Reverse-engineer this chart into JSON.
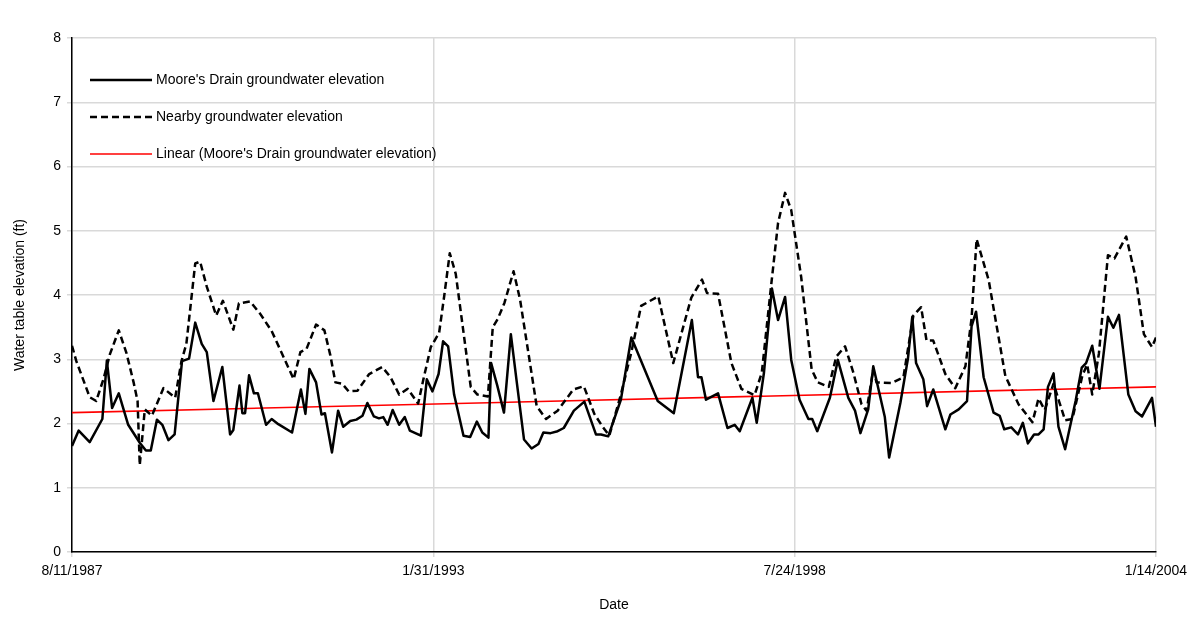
{
  "chart_data": {
    "type": "line",
    "xlabel": "Date",
    "ylabel": "Water table elevation (ft)",
    "xlim": [
      "1987-08-11",
      "2004-01-14"
    ],
    "xticks": [
      {
        "value": "1987-08-11",
        "label": "8/11/1987"
      },
      {
        "value": "1993-01-31",
        "label": "1/31/1993"
      },
      {
        "value": "1998-07-24",
        "label": "7/24/1998"
      },
      {
        "value": "2004-01-14",
        "label": "1/14/2004"
      }
    ],
    "ylim": [
      0,
      8
    ],
    "yticks": [
      0,
      1,
      2,
      3,
      4,
      5,
      6,
      7,
      8
    ],
    "grid": true,
    "legend": "top left",
    "series": [
      {
        "name": "Moore's Drain groundwater elevation",
        "color": "#000000",
        "line_style": "solid",
        "x": [
          "1987-08-11",
          "1987-09-17",
          "1987-11-17",
          "1988-01-26",
          "1988-02-20",
          "1988-03-20",
          "1988-04-26",
          "1988-06-17",
          "1988-08-20",
          "1988-09-23",
          "1988-10-20",
          "1988-11-23",
          "1988-12-23",
          "1989-01-26",
          "1989-03-01",
          "1989-04-11",
          "1989-05-20",
          "1989-06-23",
          "1989-07-29",
          "1989-08-26",
          "1989-10-02",
          "1989-11-20",
          "1990-01-02",
          "1990-01-20",
          "1990-02-23",
          "1990-03-11",
          "1990-03-26",
          "1990-04-17",
          "1990-05-14",
          "1990-06-05",
          "1990-07-20",
          "1990-08-20",
          "1990-09-26",
          "1990-12-11",
          "1991-01-29",
          "1991-02-23",
          "1991-03-17",
          "1991-04-23",
          "1991-05-23",
          "1991-06-11",
          "1991-07-20",
          "1991-08-23",
          "1991-09-20",
          "1991-10-29",
          "1991-12-02",
          "1992-01-05",
          "1992-02-01",
          "1992-03-08",
          "1992-04-05",
          "1992-04-29",
          "1992-05-23",
          "1992-06-20",
          "1992-07-26",
          "1992-08-26",
          "1992-09-23",
          "1992-11-23",
          "1992-12-26",
          "1993-01-26",
          "1993-03-01",
          "1993-03-26",
          "1993-04-23",
          "1993-05-26",
          "1993-07-17",
          "1993-08-23",
          "1993-09-29",
          "1993-10-29",
          "1993-12-02",
          "1993-12-17",
          "1994-01-20",
          "1994-02-26",
          "1994-04-05",
          "1994-05-08",
          "1994-06-17",
          "1994-07-29",
          "1994-09-05",
          "1994-10-02",
          "1994-11-11",
          "1994-12-20",
          "1995-01-23",
          "1995-03-20",
          "1995-05-17",
          "1995-07-20",
          "1995-08-17",
          "1995-09-26",
          "1995-12-05",
          "1996-02-01",
          "1996-06-26",
          "1996-09-23",
          "1997-01-01",
          "1997-02-04",
          "1997-02-23",
          "1997-03-20",
          "1997-05-26",
          "1997-07-17",
          "1997-08-26",
          "1997-09-23",
          "1997-12-02",
          "1997-12-26",
          "1998-02-04",
          "1998-03-20",
          "1998-04-23",
          "1998-06-01",
          "1998-07-05",
          "1998-08-20",
          "1998-10-08",
          "1998-10-29",
          "1998-11-26",
          "1999-02-04",
          "1999-03-20",
          "1999-05-17",
          "1999-06-23",
          "1999-07-23",
          "1999-09-04",
          "1999-10-02",
          "1999-12-05",
          "1999-12-29",
          "2000-02-29",
          "2000-04-11",
          "2000-05-05",
          "2000-05-26",
          "2000-07-05",
          "2000-07-26",
          "2000-08-29",
          "2000-11-04",
          "2000-12-02",
          "2001-01-17",
          "2001-03-04",
          "2001-03-29",
          "2001-04-23",
          "2001-06-04",
          "2001-07-29",
          "2001-09-01",
          "2001-09-26",
          "2001-11-04",
          "2001-12-11",
          "2002-01-07",
          "2002-02-04",
          "2002-03-10",
          "2002-04-04",
          "2002-05-02",
          "2002-05-26",
          "2002-06-26",
          "2002-07-23",
          "2002-08-29",
          "2002-10-26",
          "2002-11-29",
          "2002-12-23",
          "2003-01-26",
          "2003-03-07",
          "2003-04-23",
          "2003-05-23",
          "2003-06-23",
          "2003-08-14",
          "2003-09-23",
          "2003-10-29",
          "2003-12-23",
          "2004-01-14"
        ],
        "values": [
          1.65,
          1.89,
          1.71,
          2.07,
          2.98,
          2.24,
          2.47,
          1.98,
          1.7,
          1.58,
          1.58,
          2.06,
          1.98,
          1.74,
          1.83,
          2.97,
          3.01,
          3.57,
          3.24,
          3.11,
          2.35,
          2.88,
          1.83,
          1.9,
          2.59,
          2.16,
          2.16,
          2.75,
          2.47,
          2.47,
          1.98,
          2.07,
          1.99,
          1.86,
          2.53,
          2.15,
          2.85,
          2.64,
          2.14,
          2.16,
          1.55,
          2.2,
          1.95,
          2.04,
          2.06,
          2.12,
          2.32,
          2.11,
          2.08,
          2.1,
          1.98,
          2.21,
          1.98,
          2.1,
          1.89,
          1.81,
          2.69,
          2.5,
          2.77,
          3.28,
          3.2,
          2.45,
          1.81,
          1.79,
          2.03,
          1.86,
          1.78,
          2.94,
          2.59,
          2.17,
          3.39,
          2.64,
          1.75,
          1.61,
          1.68,
          1.86,
          1.85,
          1.88,
          1.93,
          2.2,
          2.34,
          1.83,
          1.83,
          1.8,
          2.37,
          3.34,
          2.35,
          2.16,
          3.61,
          2.72,
          2.72,
          2.37,
          2.47,
          1.93,
          1.98,
          1.88,
          2.4,
          2.01,
          2.79,
          4.1,
          3.61,
          3.97,
          2.99,
          2.37,
          2.07,
          2.07,
          1.88,
          2.4,
          2.99,
          2.4,
          2.2,
          1.85,
          2.22,
          2.89,
          2.1,
          1.47,
          2.32,
          3.01,
          3.66,
          2.94,
          2.69,
          2.27,
          2.53,
          1.91,
          2.14,
          2.22,
          2.35,
          3.51,
          3.74,
          2.72,
          2.17,
          2.12,
          1.91,
          1.94,
          1.83,
          2.01,
          1.69,
          1.83,
          1.83,
          1.91,
          2.57,
          2.78,
          1.95,
          1.6,
          2.35,
          2.87,
          2.94,
          3.21,
          2.54,
          3.66,
          3.49,
          3.69,
          2.45,
          2.19,
          2.11,
          2.4,
          1.95
        ]
      },
      {
        "name": "Nearby groundwater elevation",
        "color": "#000000",
        "line_style": "dashed",
        "x": [
          "1987-08-11",
          "1987-09-04",
          "1987-11-17",
          "1987-12-23",
          "1988-02-01",
          "1988-03-08",
          "1988-04-26",
          "1988-06-08",
          "1988-07-17",
          "1988-08-08",
          "1988-08-20",
          "1988-09-17",
          "1988-10-26",
          "1988-12-29",
          "1989-03-04",
          "1989-04-08",
          "1989-05-05",
          "1989-06-23",
          "1989-07-20",
          "1989-08-26",
          "1989-10-17",
          "1989-11-23",
          "1990-01-20",
          "1990-02-20",
          "1990-04-23",
          "1990-06-17",
          "1990-08-20",
          "1990-12-20",
          "1991-01-26",
          "1991-03-01",
          "1991-04-23",
          "1991-06-08",
          "1991-07-11",
          "1991-08-08",
          "1991-09-14",
          "1991-10-20",
          "1991-12-08",
          "1992-02-11",
          "1992-04-23",
          "1992-06-08",
          "1992-07-26",
          "1992-09-11",
          "1992-11-08",
          "1992-12-08",
          "1993-01-17",
          "1993-03-04",
          "1993-04-01",
          "1993-05-02",
          "1993-06-04",
          "1993-08-26",
          "1993-10-02",
          "1993-11-29",
          "1993-12-26",
          "1994-01-23",
          "1994-03-01",
          "1994-04-20",
          "1994-05-26",
          "1994-08-26",
          "1994-10-17",
          "1994-12-20",
          "1995-03-17",
          "1995-05-14",
          "1995-07-11",
          "1995-08-26",
          "1995-10-02",
          "1995-12-05",
          "1996-02-01",
          "1996-03-26",
          "1996-06-29",
          "1996-09-20",
          "1996-12-29",
          "1997-02-26",
          "1997-03-26",
          "1997-05-26",
          "1997-08-08",
          "1997-10-02",
          "1997-12-14",
          "1998-01-23",
          "1998-03-17",
          "1998-04-23",
          "1998-06-01",
          "1998-07-05",
          "1998-08-29",
          "1998-10-26",
          "1998-11-29",
          "1999-01-29",
          "1999-03-11",
          "1999-04-29",
          "1999-06-14",
          "1999-07-29",
          "1999-08-26",
          "1999-10-02",
          "1999-10-20",
          "2000-01-11",
          "2000-03-17",
          "2000-05-11",
          "2000-06-23",
          "2000-07-23",
          "2000-08-29",
          "2000-11-04",
          "2000-12-29",
          "2001-02-23",
          "2001-03-29",
          "2001-04-26",
          "2001-07-02",
          "2001-10-02",
          "2001-12-14",
          "2002-03-01",
          "2002-04-04",
          "2002-05-08",
          "2002-06-26",
          "2002-07-26",
          "2002-08-29",
          "2002-10-08",
          "2002-12-02",
          "2002-12-29",
          "2003-01-26",
          "2003-03-04",
          "2003-04-23",
          "2003-05-29",
          "2003-08-02",
          "2003-09-23",
          "2003-11-08",
          "2003-12-23",
          "2004-01-14"
        ],
        "values": [
          3.21,
          2.97,
          2.41,
          2.35,
          2.69,
          3.08,
          3.45,
          3.09,
          2.64,
          2.35,
          1.35,
          2.22,
          2.12,
          2.55,
          2.4,
          2.97,
          3.24,
          4.49,
          4.52,
          4.13,
          3.68,
          3.91,
          3.46,
          3.87,
          3.9,
          3.71,
          3.44,
          2.69,
          3.11,
          3.16,
          3.54,
          3.45,
          3.06,
          2.64,
          2.62,
          2.5,
          2.51,
          2.77,
          2.88,
          2.72,
          2.45,
          2.54,
          2.31,
          2.7,
          3.19,
          3.41,
          3.98,
          4.65,
          4.33,
          2.57,
          2.45,
          2.42,
          3.5,
          3.63,
          3.88,
          4.37,
          3.93,
          2.27,
          2.07,
          2.2,
          2.53,
          2.58,
          2.15,
          1.95,
          1.81,
          2.45,
          3.11,
          3.83,
          3.98,
          2.94,
          3.96,
          4.24,
          4.03,
          4.02,
          2.94,
          2.54,
          2.44,
          2.79,
          4.18,
          5.12,
          5.59,
          5.32,
          4.28,
          2.84,
          2.64,
          2.57,
          3.04,
          3.2,
          2.79,
          2.3,
          2.2,
          2.84,
          2.64,
          2.63,
          2.72,
          3.68,
          3.81,
          3.29,
          3.29,
          2.77,
          2.55,
          2.89,
          3.63,
          4.87,
          4.23,
          2.74,
          2.3,
          2.02,
          2.39,
          2.21,
          2.62,
          2.35,
          2.05,
          2.07,
          2.74,
          2.92,
          2.45,
          3.09,
          4.62,
          4.57,
          4.91,
          4.28,
          3.39,
          3.19,
          3.34
        ]
      },
      {
        "name": "Linear (Moore's Drain groundwater elevation)",
        "type": "line",
        "color": "#ff0000",
        "line_style": "solid",
        "x": [
          "1987-08-11",
          "2004-01-14"
        ],
        "values": [
          2.17,
          2.57
        ]
      }
    ]
  }
}
